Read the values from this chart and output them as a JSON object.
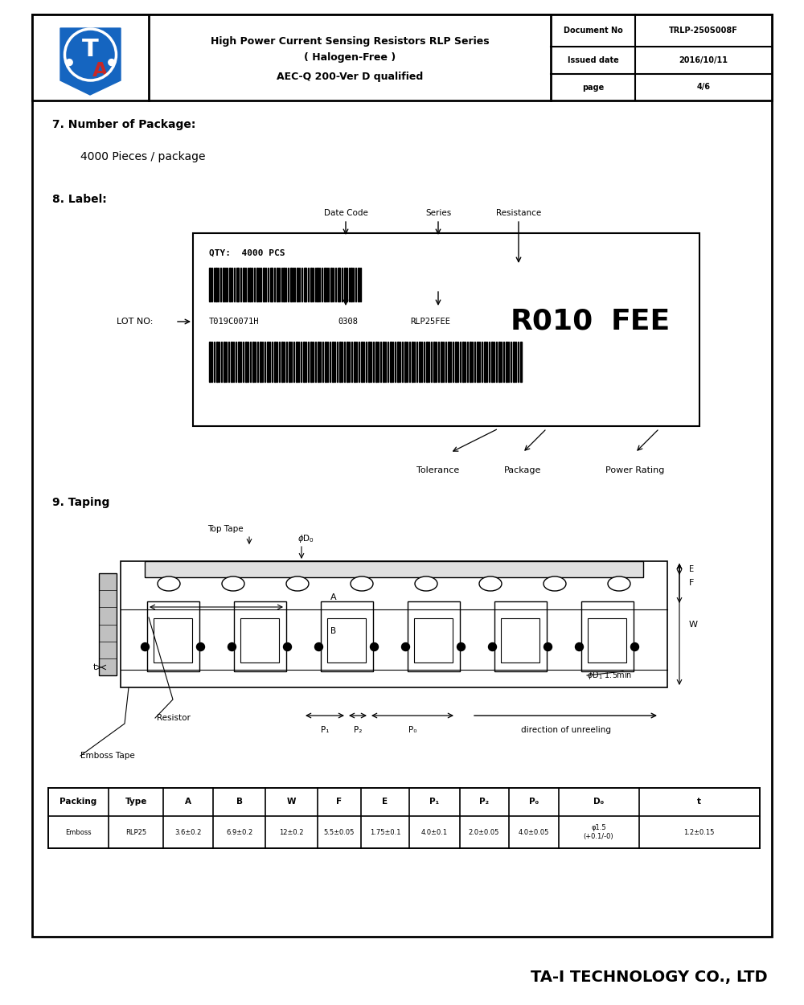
{
  "title_line1": "High Power Current Sensing Resistors RLP Series",
  "title_line2": "( Halogen-Free )",
  "title_line3": "AEC-Q 200-Ver D qualified",
  "doc_no_label": "Document No",
  "doc_no_value": "TRLP-250S008F",
  "issued_label": "Issued date",
  "issued_value": "2016/10/11",
  "page_label": "page",
  "page_value": "4/6",
  "section7_title": "7. Number of Package:",
  "section7_content": "4000 Pieces / package",
  "section8_title": "8. Label:",
  "label_date_code": "Date Code",
  "label_series": "Series",
  "label_resistance": "Resistance",
  "label_qty": "QTY:  4000 PCS",
  "label_lot": "LOT NO:",
  "label_lot_num": "T019C0071H",
  "label_date_code_val": "0308",
  "label_series_val": "RLP25FEE",
  "label_r010": "R010",
  "label_fee": "FEE",
  "label_tolerance": "Tolerance",
  "label_package": "Package",
  "label_power": "Power Rating",
  "section9_title": "9. Taping",
  "table_headers": [
    "Packing",
    "Type",
    "A",
    "B",
    "W",
    "F",
    "E",
    "P₁",
    "P₂",
    "P₀",
    "D₀",
    "t"
  ],
  "table_row1": [
    "Emboss",
    "RLP25",
    "3.6±0.2",
    "6.9±0.2",
    "12±0.2",
    "5.5±0.05",
    "1.75±0.1",
    "4.0±0.1",
    "2.0±0.05",
    "4.0±0.05",
    "φ1.5\n(+0.1/-0)",
    "1.2±0.15"
  ],
  "footer": "TA-I TECHNOLOGY CO., LTD",
  "bg_color": "#ffffff",
  "blue_color": "#1565C0",
  "red_color": "#C62828"
}
